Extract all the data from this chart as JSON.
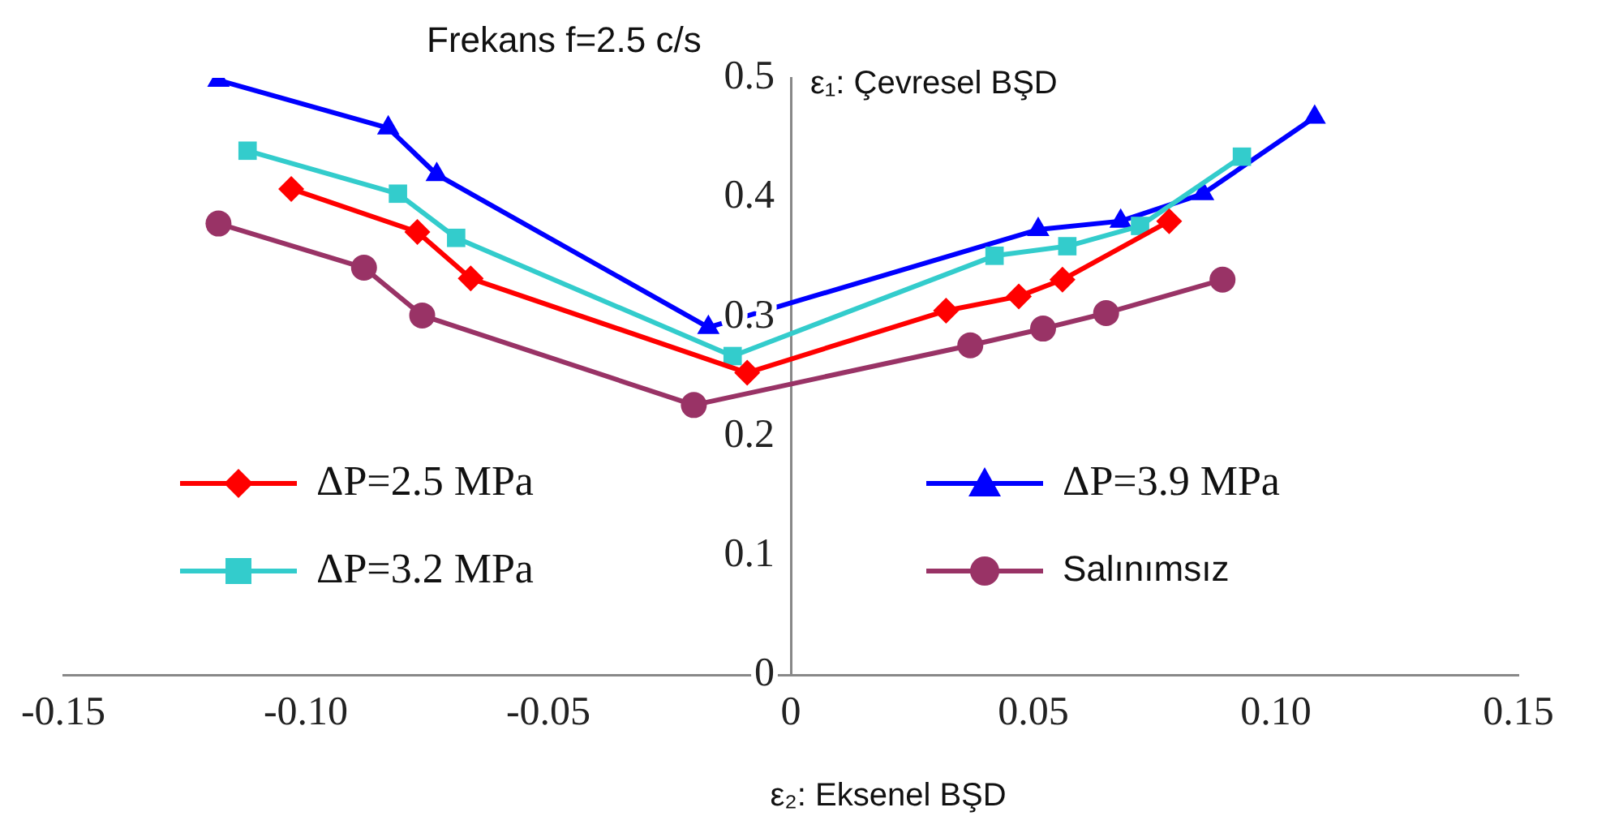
{
  "chart_data": {
    "type": "line",
    "title": "Frekans f=2.5 c/s",
    "xlabel": "ε₂: Eksenel BŞD",
    "ylabel": "ε₁: Çevresel BŞD",
    "xlim": [
      -0.15,
      0.15
    ],
    "xticks": [
      -0.15,
      {
        "value": -0.1,
        "label": "-0.10"
      },
      -0.05,
      0,
      0.05,
      {
        "value": 0.1,
        "label": "0.10"
      },
      0.15
    ],
    "ylim": [
      0,
      0.5
    ],
    "yticks": [
      0,
      0.1,
      0.2,
      0.3,
      0.4,
      0.5
    ],
    "grid": false,
    "legend": "bottom",
    "line_style": "solid",
    "series": [
      {
        "name": "ΔP=2.5 MPa",
        "color": "#ff0000",
        "marker": "diamond",
        "x": [
          -0.103,
          -0.077,
          -0.066,
          -0.009,
          0.032,
          0.047,
          0.056,
          0.078
        ],
        "values": [
          0.407,
          0.371,
          0.332,
          0.253,
          0.305,
          0.317,
          0.331,
          0.38
        ]
      },
      {
        "name": "ΔP=3.2 MPa",
        "color": "#33cccc",
        "marker": "square",
        "x": [
          -0.112,
          -0.081,
          -0.069,
          -0.012,
          0.042,
          0.057,
          0.072,
          0.093
        ],
        "values": [
          0.439,
          0.403,
          0.366,
          0.267,
          0.351,
          0.359,
          0.376,
          0.434
        ]
      },
      {
        "name": "ΔP=3.9 MPa",
        "color": "#0000ff",
        "marker": "triangle",
        "x": [
          -0.118,
          -0.083,
          -0.073,
          -0.017,
          0.051,
          0.068,
          0.085,
          0.108
        ],
        "values": [
          0.498,
          0.458,
          0.419,
          0.291,
          0.373,
          0.38,
          0.403,
          0.467
        ]
      },
      {
        "name": "Salınımsız",
        "color": "#993366",
        "marker": "circle",
        "x": [
          -0.118,
          -0.088,
          -0.076,
          -0.02,
          0.037,
          0.052,
          0.065,
          0.089
        ],
        "values": [
          0.378,
          0.341,
          0.301,
          0.226,
          0.276,
          0.29,
          0.303,
          0.331
        ]
      }
    ]
  }
}
